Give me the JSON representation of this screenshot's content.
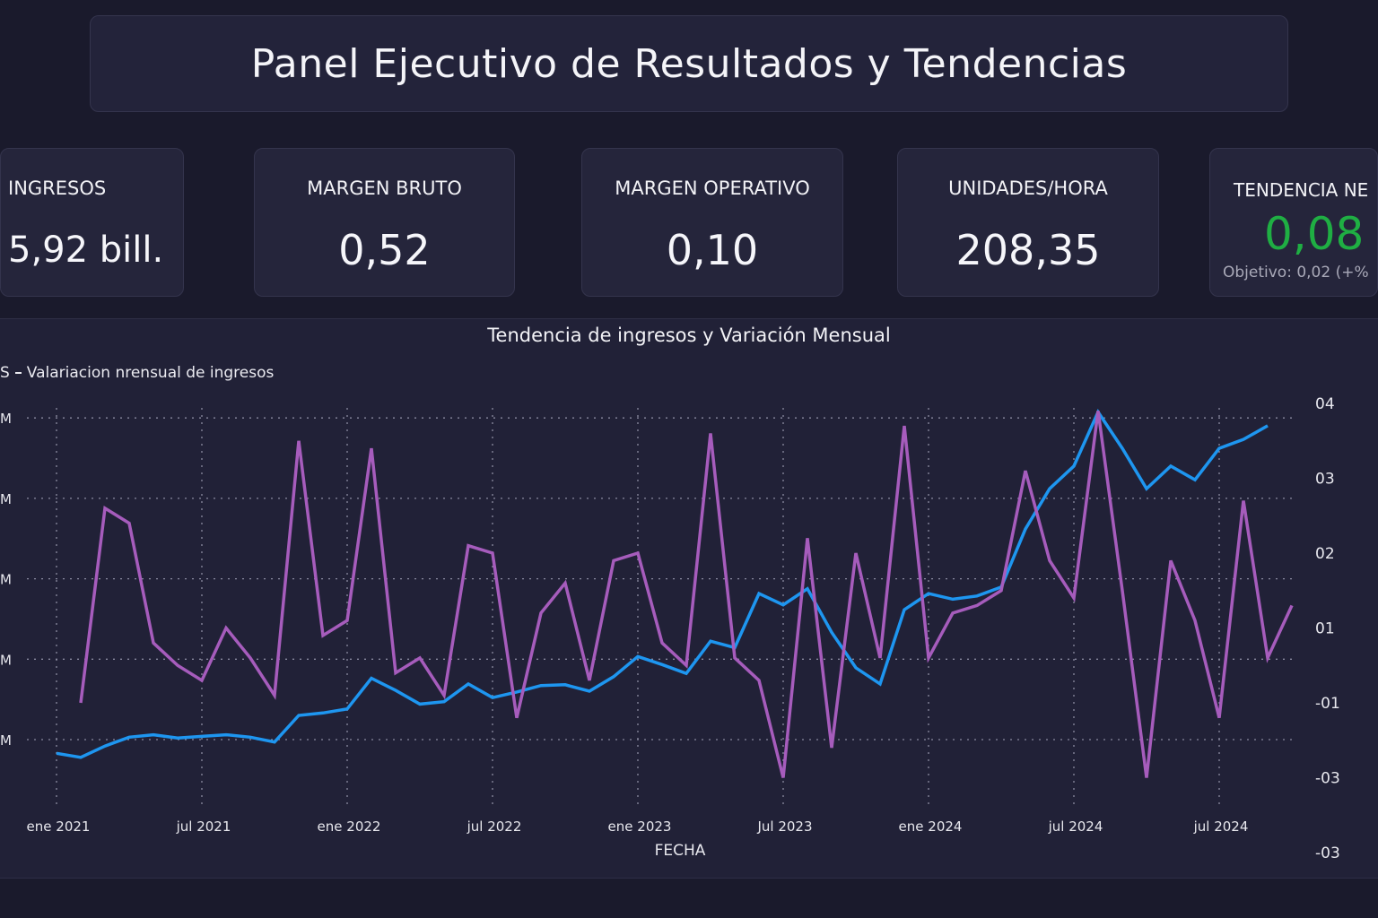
{
  "header": {
    "title": "Panel Ejecutivo de Resultados y Tendencias"
  },
  "kpis": [
    {
      "label": "INGRESOS",
      "value": "5,92 bill."
    },
    {
      "label": "MARGEN BRUTO",
      "value": "0,52"
    },
    {
      "label": "MARGEN OPERATIVO",
      "value": "0,10"
    },
    {
      "label": "UNIDADES/HORA",
      "value": "208,35"
    },
    {
      "label": "TENDENCIA NE",
      "value": "0,08",
      "target": "Objetivo: 0,02 (+%",
      "value_color": "#1fae43"
    }
  ],
  "colors": {
    "revenue_line": "#1e96f0",
    "variation_line": "#a65cbc",
    "background": "#1a1a2c",
    "panel": "#212137"
  },
  "chart_data": {
    "type": "line",
    "title": "Tendencia de ingresos y Variación Mensual",
    "legend_text": "S",
    "legend_series": "Valariacion nrensual de ingresos",
    "xlabel": "FECHA",
    "x_ticks": [
      "ene 2021",
      "jul 2021",
      "ene 2022",
      "jul 2022",
      "ene 2023",
      "Jul 2023",
      "ene 2024",
      "jul 2024",
      "jul 2024"
    ],
    "left_ticks": [
      "M",
      "M",
      "M",
      "M",
      "M"
    ],
    "right_ticks": [
      "04",
      "03",
      "02",
      "01",
      "-01",
      "-03",
      "-03"
    ],
    "grid": true,
    "series": [
      {
        "axis": "left",
        "color": "#1e96f0",
        "start": "2021-01",
        "values": [
          0.83,
          0.78,
          0.92,
          1.03,
          1.06,
          1.02,
          1.04,
          1.06,
          1.03,
          0.97,
          1.3,
          1.33,
          1.38,
          1.76,
          1.61,
          1.44,
          1.47,
          1.69,
          1.52,
          1.59,
          1.67,
          1.68,
          1.6,
          1.78,
          2.03,
          1.93,
          1.82,
          2.22,
          2.14,
          2.81,
          2.67,
          2.87,
          2.33,
          1.89,
          1.69,
          2.61,
          2.81,
          2.74,
          2.78,
          2.89,
          3.61,
          4.11,
          4.39,
          5.06,
          4.61,
          4.11,
          4.39,
          4.22,
          4.61,
          4.72,
          4.89
        ]
      },
      {
        "name": "Valariacion nrensual de ingresos",
        "axis": "right",
        "color": "#a65cbc",
        "start": "2021-02",
        "values": [
          0.0,
          0.26,
          0.24,
          0.08,
          0.05,
          0.03,
          0.1,
          0.06,
          0.01,
          0.35,
          0.09,
          0.11,
          0.34,
          0.04,
          0.06,
          0.01,
          0.21,
          0.2,
          -0.02,
          0.12,
          0.16,
          0.03,
          0.19,
          0.2,
          0.08,
          0.05,
          0.36,
          0.06,
          0.03,
          -0.1,
          0.22,
          -0.06,
          0.2,
          0.06,
          0.37,
          0.06,
          0.12,
          0.13,
          0.15,
          0.31,
          0.19,
          0.14,
          0.39,
          0.15,
          -0.1,
          0.19,
          0.11,
          -0.02,
          0.27,
          0.06,
          0.13
        ]
      }
    ]
  }
}
